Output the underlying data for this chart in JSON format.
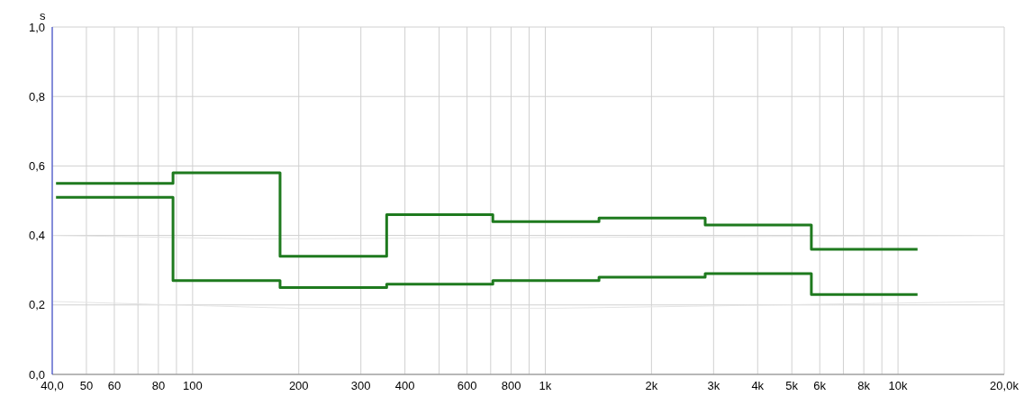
{
  "chart_data": {
    "type": "step",
    "ylabel": "s",
    "log": "x",
    "grid": true,
    "marker": "none",
    "line_style": "solid",
    "xlim": [
      40,
      20000
    ],
    "ylim": [
      0,
      1
    ],
    "xticks": [
      {
        "value": 40,
        "label": "40,0"
      },
      50,
      60,
      {
        "value": 70,
        "label": null
      },
      80,
      {
        "value": 90,
        "label": null
      },
      100,
      200,
      300,
      400,
      {
        "value": 500,
        "label": null
      },
      600,
      {
        "value": 700,
        "label": null
      },
      800,
      {
        "value": 900,
        "label": null
      },
      {
        "value": 1000,
        "label": "1k"
      },
      {
        "value": 2000,
        "label": "2k"
      },
      {
        "value": 3000,
        "label": "3k"
      },
      {
        "value": 4000,
        "label": "4k"
      },
      {
        "value": 5000,
        "label": "5k"
      },
      {
        "value": 6000,
        "label": "6k"
      },
      {
        "value": 7000,
        "label": null
      },
      {
        "value": 8000,
        "label": "8k"
      },
      {
        "value": 9000,
        "label": null
      },
      {
        "value": 10000,
        "label": "10k"
      },
      {
        "value": 20000,
        "label": "20,0k"
      }
    ],
    "yticks": [
      {
        "value": 0,
        "label": "0,0"
      },
      {
        "value": 0.2,
        "label": "0,2"
      },
      {
        "value": 0.4,
        "label": "0,4"
      },
      {
        "value": 0.6,
        "label": "0,6"
      },
      {
        "value": 0.8,
        "label": "0,8"
      },
      {
        "value": 1,
        "label": "1,0"
      }
    ],
    "series": [
      {
        "type": "line",
        "color": "#e4e4e4",
        "x": [
          40,
          150,
          20000
        ],
        "values": [
          0.4,
          0.39,
          0.4
        ]
      },
      {
        "type": "line",
        "color": "#e4e4e4",
        "x": [
          40,
          200,
          1000,
          20000
        ],
        "values": [
          0.21,
          0.19,
          0.19,
          0.21
        ]
      },
      {
        "color": "#1e7a1e",
        "x": [
          41,
          88,
          177,
          355,
          710,
          1420,
          2840,
          5680,
          11360
        ],
        "values": [
          0.55,
          0.58,
          0.34,
          0.46,
          0.44,
          0.45,
          0.43,
          0.36,
          0.36
        ]
      },
      {
        "color": "#1e7a1e",
        "x": [
          41,
          88,
          177,
          355,
          710,
          1420,
          2840,
          5680,
          11360
        ],
        "values": [
          0.51,
          0.27,
          0.25,
          0.26,
          0.27,
          0.28,
          0.29,
          0.23,
          0.23
        ]
      }
    ]
  }
}
